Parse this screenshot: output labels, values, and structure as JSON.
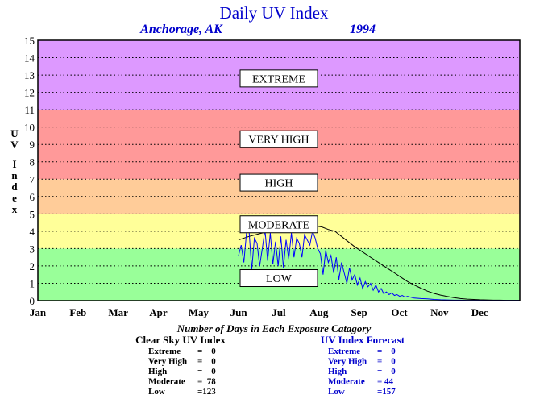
{
  "chart_data": {
    "type": "line",
    "title": "Daily UV Index",
    "subtitle_location": "Anchorage, AK",
    "subtitle_year": "1994",
    "ylabel": "UV Index",
    "ylim": [
      0,
      15
    ],
    "yticks": [
      "0",
      "1",
      "2",
      "3",
      "4",
      "5",
      "6",
      "7",
      "8",
      "9",
      "10",
      "11",
      "12",
      "13",
      "14",
      "15"
    ],
    "months": [
      "Jan",
      "Feb",
      "Mar",
      "Apr",
      "May",
      "Jun",
      "Jul",
      "Aug",
      "Sep",
      "Oct",
      "Nov",
      "Dec"
    ],
    "grid": true,
    "bands": [
      {
        "label": "LOW",
        "from": 0,
        "to": 3,
        "color": "#99ff99"
      },
      {
        "label": "MODERATE",
        "from": 3,
        "to": 5,
        "color": "#ffff99"
      },
      {
        "label": "HIGH",
        "from": 5,
        "to": 7,
        "color": "#ffcc99"
      },
      {
        "label": "VERY HIGH",
        "from": 7,
        "to": 11,
        "color": "#ff9999"
      },
      {
        "label": "EXTREME",
        "from": 11,
        "to": 15,
        "color": "#dd99ff"
      }
    ],
    "band_label_values": {
      "EXTREME": 12.8,
      "VERY HIGH": 9.3,
      "HIGH": 6.8,
      "MODERATE": 4.4,
      "LOW": 1.3
    },
    "series": [
      {
        "color": "#000000",
        "x": [
          152,
          160,
          170,
          180,
          190,
          200,
          205,
          210,
          215,
          220,
          225,
          230,
          235,
          240,
          245,
          250,
          255,
          260,
          265,
          270,
          275,
          280,
          285,
          290,
          295,
          300,
          305,
          310,
          315,
          320,
          325,
          330,
          335,
          340,
          345,
          350,
          355,
          360,
          365
        ],
        "values": [
          3.5,
          3.7,
          3.9,
          4.1,
          4.2,
          4.3,
          4.35,
          4.3,
          4.25,
          4.1,
          4.0,
          3.7,
          3.4,
          3.1,
          2.85,
          2.6,
          2.35,
          2.1,
          1.85,
          1.6,
          1.35,
          1.1,
          0.9,
          0.72,
          0.55,
          0.42,
          0.32,
          0.24,
          0.17,
          0.12,
          0.09,
          0.07,
          0.05,
          0.04,
          0.03,
          0.03,
          0.02,
          0.02,
          0.02
        ]
      },
      {
        "color": "#0000ff",
        "x": [
          152,
          154,
          156,
          158,
          160,
          162,
          164,
          166,
          168,
          170,
          172,
          174,
          176,
          178,
          180,
          182,
          184,
          186,
          188,
          190,
          192,
          194,
          196,
          198,
          200,
          202,
          204,
          206,
          208,
          210,
          212,
          214,
          216,
          218,
          220,
          222,
          224,
          226,
          228,
          230,
          232,
          234,
          236,
          238,
          240,
          242,
          244,
          246,
          248,
          250,
          252,
          254,
          256,
          258,
          260,
          262,
          264,
          266,
          268,
          270,
          272,
          274,
          276,
          278,
          280,
          285,
          290,
          295,
          300,
          305,
          310,
          315,
          320,
          325,
          330,
          335,
          340,
          345,
          350,
          355,
          360,
          365
        ],
        "values": [
          2.6,
          3.2,
          2.2,
          3.9,
          4.0,
          1.8,
          3.6,
          3.3,
          2.0,
          3.0,
          4.1,
          2.3,
          3.9,
          2.1,
          3.4,
          2.0,
          3.7,
          1.9,
          3.5,
          2.4,
          3.9,
          2.5,
          3.6,
          3.3,
          2.5,
          3.8,
          3.5,
          3.2,
          4.0,
          3.6,
          3.0,
          2.7,
          1.5,
          2.9,
          2.2,
          2.6,
          1.6,
          2.5,
          1.2,
          2.2,
          1.6,
          1.0,
          1.9,
          1.2,
          1.5,
          0.9,
          1.3,
          0.7,
          1.1,
          0.8,
          1.0,
          0.6,
          0.9,
          0.5,
          0.7,
          0.4,
          0.5,
          0.35,
          0.45,
          0.3,
          0.35,
          0.25,
          0.3,
          0.2,
          0.25,
          0.15,
          0.12,
          0.1,
          0.07,
          0.05,
          0.04,
          0.03,
          0.03,
          0.02,
          0.02,
          0.02,
          0.01,
          0.01,
          0.01,
          0.01,
          0.01,
          0.01
        ]
      }
    ]
  },
  "summary": {
    "title": "Number of Days in Each Exposure Catagory",
    "clear_sky": {
      "heading": "Clear Sky UV Index",
      "rows": [
        {
          "label": "Extreme",
          "value": "=    0"
        },
        {
          "label": "Very High",
          "value": "=    0"
        },
        {
          "label": "High",
          "value": "=    0"
        },
        {
          "label": "Moderate",
          "value": "=  78"
        },
        {
          "label": "Low",
          "value": "=123"
        }
      ]
    },
    "forecast": {
      "heading": "UV Index Forecast",
      "rows": [
        {
          "label": "Extreme",
          "value": "=    0"
        },
        {
          "label": "Very High",
          "value": "=    0"
        },
        {
          "label": "High",
          "value": "=    0"
        },
        {
          "label": "Moderate",
          "value": "= 44"
        },
        {
          "label": "Low",
          "value": "=157"
        }
      ]
    }
  }
}
